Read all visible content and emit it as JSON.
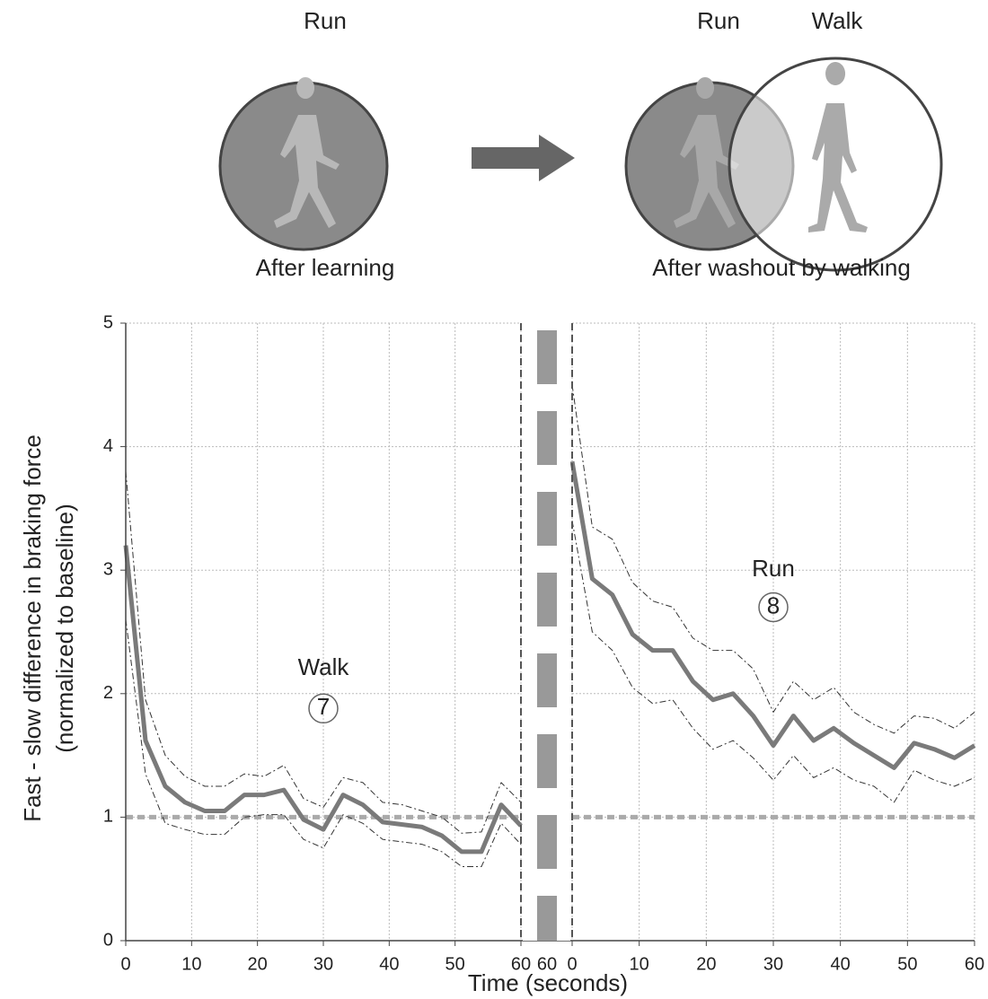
{
  "diagram": {
    "left_label": "Run",
    "left_caption": "After learning",
    "right_labels": [
      "Run",
      "Walk"
    ],
    "right_caption": "After washout by walking"
  },
  "x_label": "Time (seconds)",
  "break_label": "60",
  "chart_data": [
    {
      "type": "line",
      "y_label": [
        "Fast - slow difference in  braking force",
        "(normalized to baseline)"
      ],
      "annotations": [
        "Walk",
        "7"
      ],
      "x": [
        0,
        3,
        6,
        9,
        12,
        15,
        18,
        21,
        24,
        27,
        30,
        33,
        36,
        39,
        42,
        45,
        48,
        51,
        54,
        57,
        60
      ],
      "series": [
        {
          "color": "#333333",
          "width": 1,
          "dash": "7 3 2 3",
          "values": [
            3.8,
            1.95,
            1.5,
            1.33,
            1.25,
            1.25,
            1.35,
            1.33,
            1.42,
            1.15,
            1.08,
            1.32,
            1.28,
            1.12,
            1.1,
            1.05,
            1.0,
            0.87,
            0.88,
            1.28,
            1.12
          ]
        },
        {
          "color": "#333333",
          "width": 1,
          "dash": "7 3 2 3",
          "values": [
            2.6,
            1.35,
            0.95,
            0.9,
            0.86,
            0.86,
            1.0,
            1.02,
            1.02,
            0.82,
            0.75,
            1.02,
            0.95,
            0.82,
            0.8,
            0.78,
            0.72,
            0.6,
            0.6,
            0.95,
            0.78
          ]
        },
        {
          "color": "#7a7a7a",
          "width": 5,
          "values": [
            3.2,
            1.62,
            1.25,
            1.12,
            1.05,
            1.05,
            1.18,
            1.18,
            1.22,
            0.98,
            0.9,
            1.18,
            1.1,
            0.96,
            0.94,
            0.92,
            0.85,
            0.72,
            0.72,
            1.1,
            0.93
          ]
        }
      ],
      "reference_line": 1,
      "reference_color": "#aaaaaa",
      "xlim": [
        0,
        60
      ],
      "xticks": [
        0,
        10,
        20,
        30,
        40,
        50,
        60
      ],
      "ylim": [
        0,
        5
      ],
      "yticks": [
        0,
        1,
        2,
        3,
        4,
        5
      ],
      "grid": true
    },
    {
      "type": "line",
      "annotations": [
        "Run",
        "8"
      ],
      "x": [
        0,
        3,
        6,
        9,
        12,
        15,
        18,
        21,
        24,
        27,
        30,
        33,
        36,
        39,
        42,
        45,
        48,
        51,
        54,
        57,
        60
      ],
      "series": [
        {
          "color": "#333333",
          "width": 1,
          "dash": "7 3 2 3",
          "values": [
            4.5,
            3.35,
            3.25,
            2.9,
            2.75,
            2.7,
            2.45,
            2.35,
            2.35,
            2.2,
            1.85,
            2.1,
            1.95,
            2.05,
            1.85,
            1.75,
            1.68,
            1.82,
            1.8,
            1.72,
            1.85
          ]
        },
        {
          "color": "#333333",
          "width": 1,
          "dash": "7 3 2 3",
          "values": [
            3.4,
            2.5,
            2.35,
            2.05,
            1.92,
            1.95,
            1.72,
            1.55,
            1.62,
            1.48,
            1.3,
            1.5,
            1.32,
            1.4,
            1.3,
            1.25,
            1.12,
            1.38,
            1.3,
            1.25,
            1.32
          ]
        },
        {
          "color": "#7a7a7a",
          "width": 5,
          "values": [
            3.88,
            2.93,
            2.8,
            2.48,
            2.35,
            2.35,
            2.1,
            1.95,
            2.0,
            1.82,
            1.58,
            1.82,
            1.62,
            1.72,
            1.6,
            1.5,
            1.4,
            1.6,
            1.55,
            1.48,
            1.58
          ]
        }
      ],
      "reference_line": 1,
      "reference_color": "#aaaaaa",
      "xlim": [
        0,
        60
      ],
      "xticks": [
        0,
        10,
        20,
        30,
        40,
        50,
        60
      ],
      "ylim": [
        0,
        5
      ],
      "yticks": [
        0,
        1,
        2,
        3,
        4,
        5
      ],
      "grid": true
    }
  ]
}
